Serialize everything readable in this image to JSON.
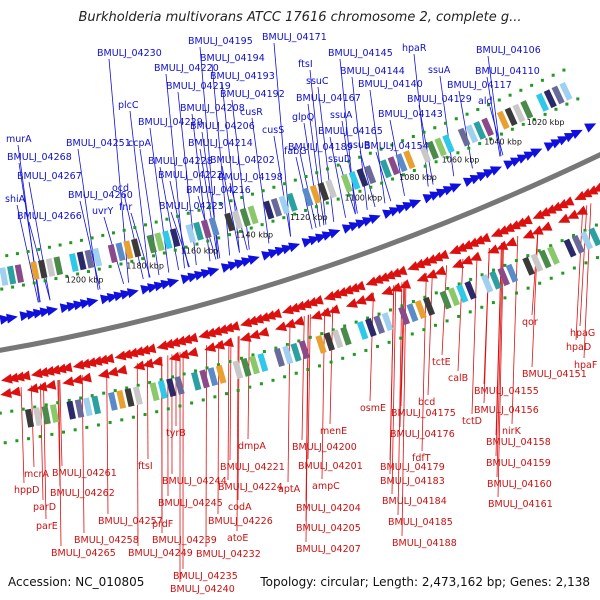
{
  "title": "Burkholderia multivorans ATCC 17616 chromosome 2, complete g...",
  "footer": {
    "accession": "Accession: NC_010805",
    "topology": "Topology: circular; Length: 2,473,162 bp; Genes: 2,138"
  },
  "colors": {
    "forward": "#1010dd",
    "reverse": "#dd1010",
    "backbone": "#777777",
    "dots": "#229922"
  },
  "kbp_markers": [
    "1020 kbp",
    "1040 kbp",
    "1060 kbp",
    "1080 kbp",
    "1100 kbp",
    "1120 kbp",
    "1140 kbp",
    "1160 kbp",
    "1180 kbp",
    "1200 kbp"
  ],
  "top_labels": [
    "BMULJ_04195",
    "BMULJ_04171",
    "BMULJ_04230",
    "BMULJ_04194",
    "BMULJ_04220",
    "BMULJ_04193",
    "BMULJ_04219",
    "BMULJ_04192",
    "plcC",
    "BMULJ_04208",
    "cusR",
    "BMULJ_04229",
    "BMULJ_04206",
    "cusS",
    "murA",
    "BMULJ_04251",
    "ccpA",
    "BMULJ_04214",
    "fabG",
    "BMULJ_04268",
    "BMULJ_04228",
    "BMULJ_04202",
    "BMULJ_04189",
    "BMULJ_04267",
    "BMULJ_04222",
    "BMULJ_04198",
    "ocd",
    "shiA",
    "BMULJ_04260",
    "BMULJ_04216",
    "uvrY",
    "fnr",
    "BMULJ_04266",
    "BMULJ_04223",
    "hpaR",
    "BMULJ_04106",
    "BMULJ_04145",
    "ssuA",
    "ftsI",
    "BMULJ_04144",
    "BMULJ_04110",
    "ssuC",
    "BMULJ_04140",
    "BMULJ_04117",
    "BMULJ_04167",
    "BMULJ_04129",
    "ald",
    "ssuA",
    "glpQ",
    "BMULJ_04143",
    "BMULJ_04165",
    "ssuB",
    "BMULJ_04154",
    "ssuD"
  ],
  "bottom_labels": [
    "qor",
    "hpaG",
    "hpaD",
    "hpaF",
    "tctE",
    "BMULJ_04151",
    "calB",
    "BMULJ_04155",
    "tctD",
    "BMULJ_04156",
    "nirK",
    "BMULJ_04158",
    "BMULJ_04159",
    "BMULJ_04160",
    "BMULJ_04161",
    "bcd",
    "osmE",
    "BMULJ_04175",
    "BMULJ_04176",
    "fdfT",
    "BMULJ_04179",
    "BMULJ_04183",
    "BMULJ_04184",
    "BMULJ_04185",
    "BMULJ_04188",
    "menE",
    "BMULJ_04200",
    "BMULJ_04201",
    "ampC",
    "BMULJ_04204",
    "BMULJ_04205",
    "BMULJ_04207",
    "dmpA",
    "BMULJ_04221",
    "aptA",
    "BMULJ_04224",
    "codA",
    "BMULJ_04226",
    "atoE",
    "BMULJ_04232",
    "tyrB",
    "BMULJ_04235",
    "BMULJ_04240",
    "ftsI",
    "BMULJ_04244",
    "BMULJ_04245",
    "BMULJ_04239",
    "prdF",
    "BMULJ_04249",
    "BMULJ_04261",
    "BMULJ_04262",
    "BMULJ_04257",
    "BMULJ_04258",
    "BMULJ_04265",
    "mcrA",
    "hppD",
    "parD",
    "parE"
  ]
}
